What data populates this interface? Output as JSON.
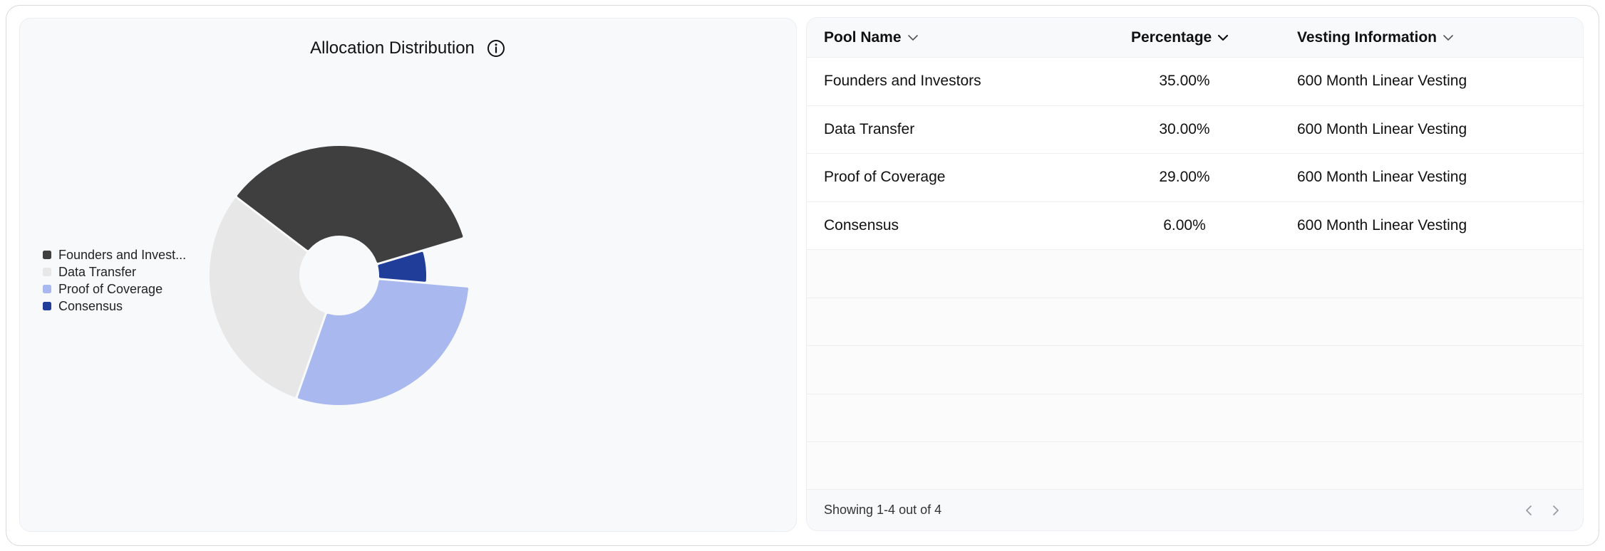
{
  "chart_data": {
    "type": "pie",
    "title": "Allocation Distribution",
    "categories": [
      "Founders and Investors",
      "Data Transfer",
      "Proof of Coverage",
      "Consensus"
    ],
    "values": [
      35,
      30,
      29,
      6
    ],
    "colors": [
      "#3f3f3f",
      "#e6e7e6",
      "#a9b9ef",
      "#1f3d99"
    ],
    "legend_labels": [
      "Founders and Invest...",
      "Data Transfer",
      "Proof of Coverage",
      "Consensus"
    ],
    "legend_position": "left",
    "donut": true
  },
  "table": {
    "headers": {
      "pool_name": "Pool Name",
      "percentage": "Percentage",
      "vesting": "Vesting Information"
    },
    "rows": [
      {
        "name": "Founders and Investors",
        "percentage": "35.00%",
        "vesting": "600 Month Linear Vesting"
      },
      {
        "name": "Data Transfer",
        "percentage": "30.00%",
        "vesting": "600 Month Linear Vesting"
      },
      {
        "name": "Proof of Coverage",
        "percentage": "29.00%",
        "vesting": "600 Month Linear Vesting"
      },
      {
        "name": "Consensus",
        "percentage": "6.00%",
        "vesting": "600 Month Linear Vesting"
      }
    ],
    "footer": "Showing 1-4 out of 4"
  },
  "icons": {
    "info": "info-icon",
    "sort": "chevron-down-icon",
    "prev": "chevron-left-icon",
    "next": "chevron-right-icon"
  }
}
